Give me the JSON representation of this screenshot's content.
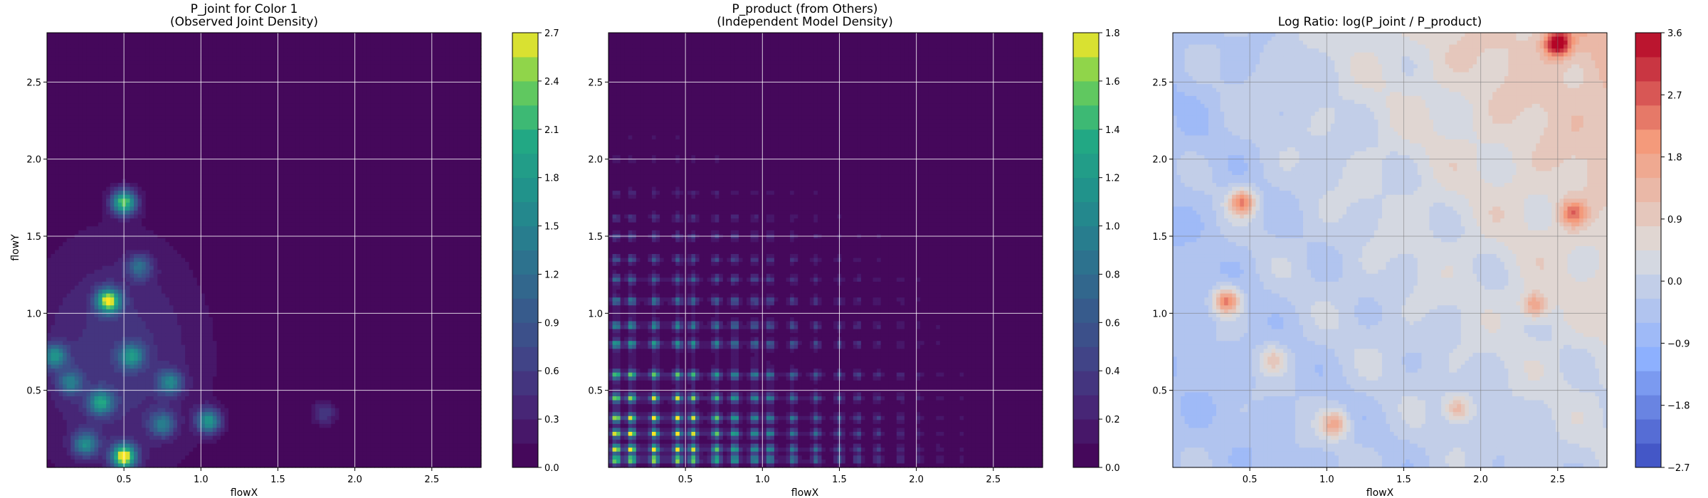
{
  "chart_data": [
    {
      "type": "heatmap",
      "title": "P_joint for Color 1\n(Observed Joint Density)",
      "xlabel": "flowX",
      "ylabel": "flowY",
      "xlim": [
        0,
        2.82
      ],
      "ylim": [
        0,
        2.82
      ],
      "xticks": [
        "0.5",
        "1.0",
        "1.5",
        "2.0",
        "2.5"
      ],
      "yticks": [
        "0.5",
        "1.0",
        "1.5",
        "2.0",
        "2.5"
      ],
      "grid": true,
      "colormap": "viridis",
      "colorbar": {
        "min": 0,
        "max": 2.7,
        "ticks": [
          "0.0",
          "0.3",
          "0.6",
          "0.9",
          "1.2",
          "1.5",
          "1.8",
          "2.1",
          "2.4",
          "2.7"
        ]
      },
      "hotspots": [
        {
          "x": 0.5,
          "y": 1.72,
          "value": 2.3
        },
        {
          "x": 0.4,
          "y": 1.08,
          "value": 2.5
        },
        {
          "x": 0.5,
          "y": 0.07,
          "value": 2.7
        },
        {
          "x": 0.35,
          "y": 0.42,
          "value": 1.6
        },
        {
          "x": 0.55,
          "y": 0.72,
          "value": 1.4
        },
        {
          "x": 1.05,
          "y": 0.3,
          "value": 1.7
        },
        {
          "x": 0.8,
          "y": 0.55,
          "value": 1.3
        },
        {
          "x": 0.05,
          "y": 0.72,
          "value": 1.5
        },
        {
          "x": 0.25,
          "y": 0.15,
          "value": 1.4
        },
        {
          "x": 0.15,
          "y": 0.55,
          "value": 1.1
        },
        {
          "x": 0.6,
          "y": 1.3,
          "value": 1.0
        },
        {
          "x": 0.75,
          "y": 0.28,
          "value": 1.2
        },
        {
          "x": 1.8,
          "y": 0.35,
          "value": 0.6
        }
      ]
    },
    {
      "type": "heatmap",
      "title": "P_product (from Others)\n(Independent Model Density)",
      "xlabel": "flowX",
      "ylabel": "",
      "xlim": [
        0,
        2.82
      ],
      "ylim": [
        0,
        2.82
      ],
      "xticks": [
        "0.5",
        "1.0",
        "1.5",
        "2.0",
        "2.5"
      ],
      "yticks": [
        "0.5",
        "1.0",
        "1.5",
        "2.0",
        "2.5"
      ],
      "grid": true,
      "colormap": "viridis",
      "colorbar": {
        "min": 0,
        "max": 1.8,
        "ticks": [
          "0.0",
          "0.2",
          "0.4",
          "0.6",
          "0.8",
          "1.0",
          "1.2",
          "1.4",
          "1.6",
          "1.8"
        ]
      },
      "x_peaks": [
        0.05,
        0.15,
        0.3,
        0.45,
        0.55,
        0.7,
        0.82,
        0.95,
        1.05,
        1.2,
        1.35,
        1.5,
        1.62,
        1.75,
        1.9,
        2.02,
        2.15,
        2.3,
        2.5
      ],
      "y_peaks": [
        0.05,
        0.12,
        0.22,
        0.32,
        0.45,
        0.6,
        0.8,
        0.92,
        1.08,
        1.22,
        1.35,
        1.5,
        1.62,
        1.78,
        2.0,
        2.15,
        2.35,
        2.55
      ],
      "peak_value": 1.8
    },
    {
      "type": "heatmap",
      "title": "Log Ratio: log(P_joint / P_product)",
      "xlabel": "flowX",
      "ylabel": "",
      "xlim": [
        0,
        2.82
      ],
      "ylim": [
        0,
        2.82
      ],
      "xticks": [
        "0.5",
        "1.0",
        "1.5",
        "2.0",
        "2.5"
      ],
      "yticks": [
        "0.5",
        "1.0",
        "1.5",
        "2.0",
        "2.5"
      ],
      "grid": true,
      "colormap": "coolwarm",
      "colorbar": {
        "min": -2.7,
        "max": 3.6,
        "ticks": [
          "−2.7",
          "−1.8",
          "−0.9",
          "0.0",
          "0.9",
          "1.8",
          "2.7",
          "3.6"
        ]
      },
      "hotspots": [
        {
          "x": 0.45,
          "y": 1.72,
          "value": 2.8
        },
        {
          "x": 0.35,
          "y": 1.08,
          "value": 3.0
        },
        {
          "x": 1.05,
          "y": 0.28,
          "value": 2.2
        },
        {
          "x": 1.85,
          "y": 0.38,
          "value": 1.8
        },
        {
          "x": 2.5,
          "y": 2.75,
          "value": 3.4
        },
        {
          "x": 2.35,
          "y": 1.05,
          "value": 2.0
        },
        {
          "x": 2.6,
          "y": 1.65,
          "value": 2.2
        },
        {
          "x": 0.65,
          "y": 0.7,
          "value": 1.5
        }
      ]
    }
  ]
}
